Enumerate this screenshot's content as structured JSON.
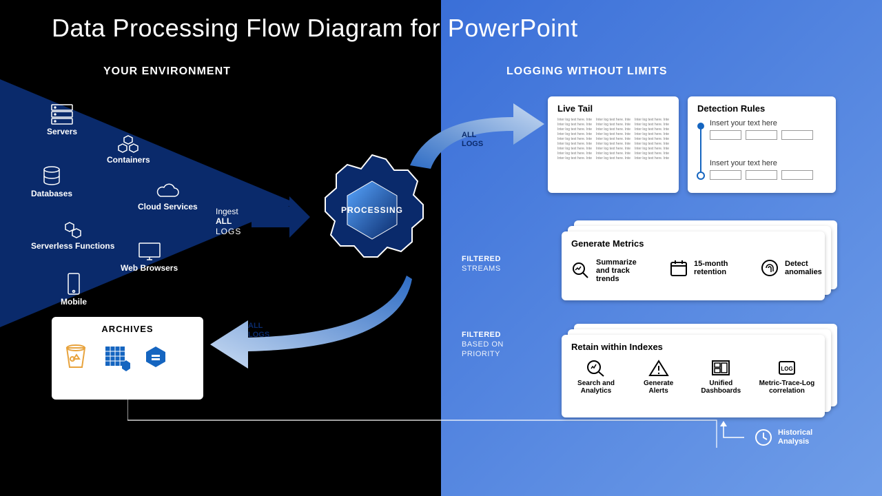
{
  "title": "Data Processing Flow Diagram for PowerPoint",
  "colors": {
    "black": "#000000",
    "blue_dark": "#0a2a6b",
    "blue_mid": "#1e66d0",
    "blue_light": "#58a6ff",
    "blue_grad_a": "#3a6fd8",
    "blue_grad_b": "#6f9de8",
    "white": "#ffffff",
    "orange": "#e8a33d",
    "accent_blue": "#1565c0",
    "grey_text": "#777777",
    "border_grey": "#999999"
  },
  "left": {
    "header": "YOUR ENVIRONMENT",
    "items": [
      {
        "label": "Servers",
        "icon": "server"
      },
      {
        "label": "Containers",
        "icon": "cubes"
      },
      {
        "label": "Databases",
        "icon": "db"
      },
      {
        "label": "Cloud Services",
        "icon": "cloud"
      },
      {
        "label": "Serverless Functions",
        "icon": "hex"
      },
      {
        "label": "Web Browsers",
        "icon": "monitor"
      },
      {
        "label": "Mobile",
        "icon": "phone"
      }
    ],
    "ingest": {
      "l1": "Ingest",
      "l2": "ALL",
      "l3": "LOGS"
    },
    "archives": {
      "header": "ARCHIVES"
    }
  },
  "center": {
    "gear_label": "PROCESSING",
    "arrow_up_label": {
      "l1": "ALL",
      "l2": "LOGS"
    },
    "arrow_down_label": {
      "l1": "ALL",
      "l2": "LOGS"
    }
  },
  "right": {
    "header": "LOGGING WITHOUT LIMITS",
    "livetail": {
      "header": "Live Tail",
      "filler": "Inter log text here. Inter log text here. Inter log text here."
    },
    "detection": {
      "header": "Detection Rules",
      "field1": "Insert your text here",
      "field2": "Insert your text here"
    },
    "streams": [
      {
        "b": "FILTERED",
        "r": "STREAMS"
      },
      {
        "b": "FILTERED",
        "r": "BASED ON\nPRIORITY"
      }
    ],
    "metrics": {
      "header": "Generate Metrics",
      "items": [
        {
          "label": "Summarize and track trends"
        },
        {
          "label": "15-month retention"
        },
        {
          "label": "Detect anomalies"
        }
      ]
    },
    "indexes": {
      "header": "Retain within Indexes",
      "items": [
        {
          "label": "Search and Analytics"
        },
        {
          "label": "Generate Alerts"
        },
        {
          "label": "Unified Dashboards"
        },
        {
          "label": "Metric-Trace-Log correlation"
        }
      ]
    },
    "historical": "Historical Analysis"
  }
}
